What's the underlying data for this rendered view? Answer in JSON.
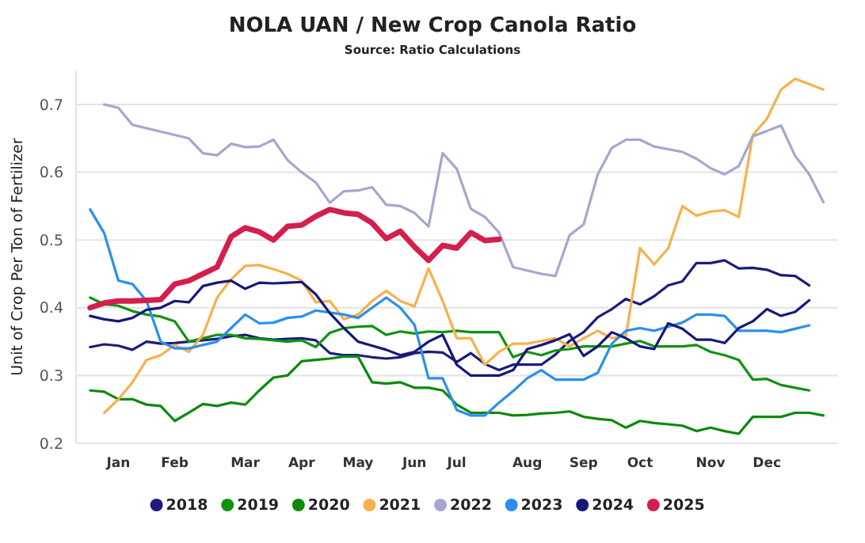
{
  "chart_data": {
    "type": "line",
    "title": "NOLA UAN / New Crop Canola Ratio",
    "subtitle": "Source: Ratio Calculations",
    "ylabel": "Unit of Crop Per Ton of Fertilizer",
    "categories": [
      null,
      null,
      "Jan",
      null,
      null,
      null,
      "Feb",
      null,
      null,
      null,
      null,
      "Mar",
      null,
      null,
      null,
      "Apr",
      null,
      null,
      null,
      "May",
      null,
      null,
      null,
      "Jun",
      null,
      null,
      "Jul",
      null,
      null,
      null,
      null,
      "Aug",
      null,
      null,
      null,
      "Sep",
      null,
      null,
      null,
      "Oct",
      null,
      null,
      null,
      null,
      "Nov",
      null,
      null,
      null,
      "Dec",
      null,
      null,
      null,
      null
    ],
    "ylim": [
      0.2,
      0.75
    ],
    "yticks": [
      0.2,
      0.3,
      0.4,
      0.5,
      0.6,
      0.7
    ],
    "grid": "y",
    "legend": "bottom",
    "marker": "none",
    "line_style": "solid",
    "series": [
      {
        "name": "2018",
        "color": "#1c1c7c",
        "values": [
          0.342,
          0.346,
          0.344,
          0.338,
          0.35,
          0.347,
          0.348,
          0.35,
          0.352,
          0.354,
          0.358,
          0.36,
          0.355,
          0.353,
          0.354,
          0.355,
          0.352,
          0.333,
          0.33,
          0.33,
          0.327,
          0.325,
          0.327,
          0.333,
          0.335,
          0.334,
          0.32,
          0.333,
          0.317,
          0.308,
          0.316,
          0.316,
          0.316,
          0.331,
          0.351,
          0.364,
          0.386,
          0.398,
          0.413,
          0.405,
          0.417,
          0.433,
          0.439,
          0.466,
          0.466,
          0.47,
          0.458,
          0.459,
          0.456,
          0.448,
          0.447,
          0.433,
          null
        ]
      },
      {
        "name": "2019",
        "color": "#119311",
        "values": [
          0.415,
          0.405,
          0.403,
          0.395,
          0.39,
          0.387,
          0.38,
          0.35,
          0.355,
          0.36,
          0.36,
          0.355,
          0.354,
          0.352,
          0.35,
          0.352,
          0.342,
          0.363,
          0.37,
          0.372,
          0.373,
          0.36,
          0.365,
          0.362,
          0.365,
          0.364,
          0.366,
          0.364,
          0.364,
          0.364,
          0.327,
          0.335,
          0.33,
          0.337,
          0.339,
          0.343,
          0.343,
          0.343,
          0.347,
          0.351,
          0.343,
          0.343,
          0.343,
          0.345,
          0.335,
          0.33,
          0.323,
          0.294,
          0.295,
          0.286,
          0.282,
          0.278,
          null
        ]
      },
      {
        "name": "2020",
        "color": "#0b8a0b",
        "values": [
          0.278,
          0.276,
          0.265,
          0.265,
          0.257,
          0.255,
          0.233,
          0.245,
          0.258,
          0.255,
          0.26,
          0.257,
          0.278,
          0.297,
          0.3,
          0.321,
          0.323,
          0.325,
          0.328,
          0.328,
          0.29,
          0.288,
          0.29,
          0.282,
          0.282,
          0.278,
          0.257,
          0.245,
          0.245,
          0.245,
          0.241,
          0.242,
          0.244,
          0.245,
          0.247,
          0.239,
          0.236,
          0.234,
          0.223,
          0.233,
          0.23,
          0.228,
          0.226,
          0.218,
          0.223,
          0.218,
          0.214,
          0.239,
          0.239,
          0.239,
          0.245,
          0.245,
          0.241
        ]
      },
      {
        "name": "2021",
        "color": "#f9b04c",
        "values": [
          null,
          0.245,
          0.265,
          0.29,
          0.323,
          0.33,
          0.345,
          0.335,
          0.36,
          0.415,
          0.442,
          0.462,
          0.463,
          0.457,
          0.45,
          0.44,
          0.408,
          0.41,
          0.383,
          0.39,
          0.41,
          0.425,
          0.41,
          0.402,
          0.458,
          0.41,
          0.355,
          0.355,
          0.316,
          0.335,
          0.347,
          0.347,
          0.351,
          0.355,
          0.343,
          0.355,
          0.366,
          0.355,
          0.359,
          0.488,
          0.464,
          0.488,
          0.55,
          0.536,
          0.542,
          0.544,
          0.534,
          0.655,
          0.679,
          0.722,
          0.738,
          0.73,
          0.722
        ]
      },
      {
        "name": "2022",
        "color": "#a3a7d0",
        "values": [
          null,
          0.7,
          0.695,
          0.67,
          0.665,
          0.66,
          0.655,
          0.65,
          0.628,
          0.625,
          0.642,
          0.637,
          0.638,
          0.648,
          0.618,
          0.6,
          0.585,
          0.555,
          0.572,
          0.573,
          0.578,
          0.552,
          0.55,
          0.54,
          0.52,
          0.628,
          0.605,
          0.546,
          0.534,
          0.511,
          0.46,
          0.455,
          0.45,
          0.447,
          0.507,
          0.523,
          0.597,
          0.636,
          0.648,
          0.648,
          0.638,
          0.634,
          0.63,
          0.62,
          0.606,
          0.597,
          0.609,
          0.653,
          0.661,
          0.669,
          0.624,
          0.597,
          0.556
        ]
      },
      {
        "name": "2023",
        "color": "#2a8ff0",
        "values": [
          0.545,
          0.51,
          0.44,
          0.435,
          0.41,
          0.35,
          0.34,
          0.34,
          0.345,
          0.35,
          0.37,
          0.39,
          0.377,
          0.378,
          0.385,
          0.387,
          0.396,
          0.393,
          0.39,
          0.385,
          0.4,
          0.415,
          0.4,
          0.375,
          0.296,
          0.296,
          0.249,
          0.241,
          0.241,
          0.26,
          0.277,
          0.296,
          0.308,
          0.294,
          0.294,
          0.294,
          0.304,
          0.347,
          0.366,
          0.37,
          0.366,
          0.372,
          0.378,
          0.39,
          0.39,
          0.388,
          0.366,
          0.366,
          0.366,
          0.364,
          0.369,
          0.374,
          null
        ]
      },
      {
        "name": "2024",
        "color": "#15187a",
        "values": [
          0.388,
          0.383,
          0.38,
          0.385,
          0.397,
          0.4,
          0.41,
          0.408,
          0.432,
          0.437,
          0.44,
          0.428,
          0.437,
          0.436,
          0.437,
          0.438,
          0.42,
          0.392,
          0.37,
          0.35,
          0.344,
          0.338,
          0.33,
          0.335,
          0.35,
          0.36,
          0.316,
          0.3,
          0.3,
          0.3,
          0.308,
          0.339,
          0.345,
          0.352,
          0.361,
          0.329,
          0.343,
          0.364,
          0.355,
          0.343,
          0.339,
          0.377,
          0.369,
          0.353,
          0.353,
          0.348,
          0.37,
          0.38,
          0.398,
          0.388,
          0.394,
          0.411,
          null
        ]
      },
      {
        "name": "2025",
        "color": "#d41f4c",
        "values": [
          0.4,
          0.407,
          0.41,
          0.41,
          0.411,
          0.412,
          0.435,
          0.44,
          0.45,
          0.46,
          0.505,
          0.518,
          0.512,
          0.5,
          0.52,
          0.522,
          0.535,
          0.545,
          0.54,
          0.538,
          0.525,
          0.502,
          0.513,
          0.49,
          0.47,
          0.492,
          0.488,
          0.511,
          0.499,
          0.501,
          null,
          null,
          null,
          null,
          null,
          null,
          null,
          null,
          null,
          null,
          null,
          null,
          null,
          null,
          null,
          null,
          null,
          null,
          null,
          null,
          null,
          null,
          null
        ]
      }
    ]
  }
}
